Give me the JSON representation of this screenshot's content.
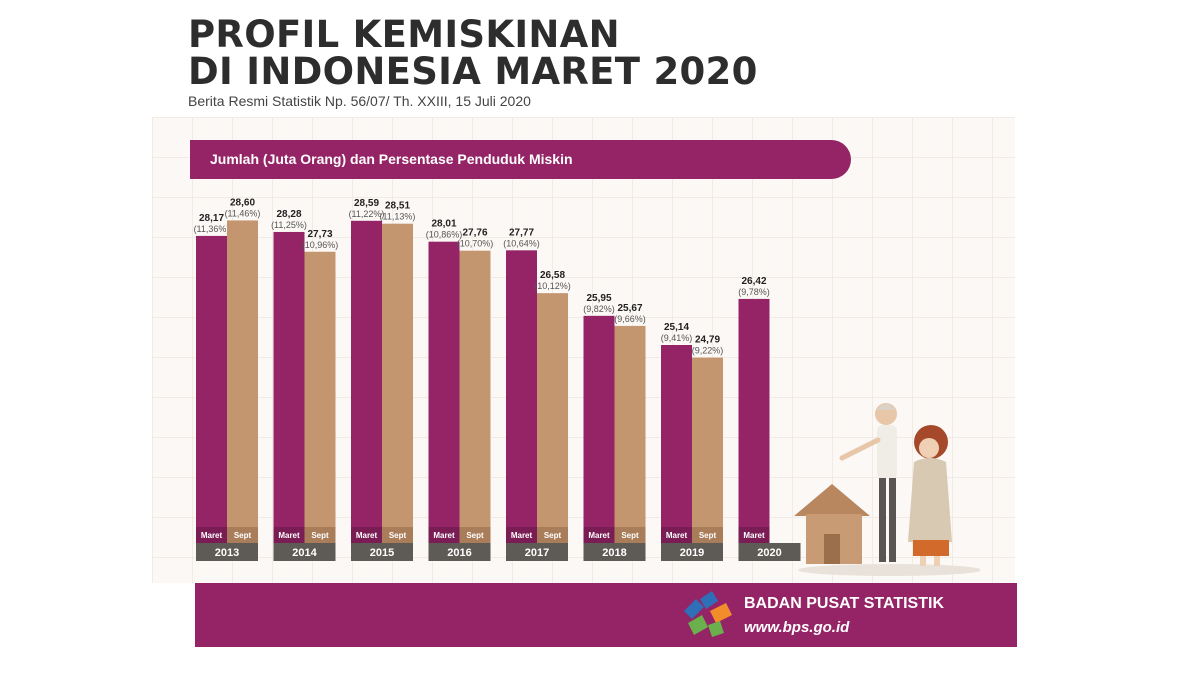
{
  "header": {
    "title_line1": "PROFIL KEMISKINAN",
    "title_line2": "DI INDONESIA MARET 2020",
    "subtitle": "Berita Resmi Statistik Np. 56/07/ Th. XXIII, 15 Juli 2020"
  },
  "chart_data": {
    "type": "bar",
    "title": "Jumlah (Juta Orang) dan Persentase Penduduk Miskin",
    "xlabel": "",
    "ylabel": "",
    "categories": [
      "2013",
      "2014",
      "2015",
      "2016",
      "2017",
      "2018",
      "2019",
      "2020"
    ],
    "series": [
      {
        "name": "Maret",
        "color": "#952467",
        "values": [
          28.17,
          28.28,
          28.59,
          28.01,
          27.77,
          25.95,
          25.14,
          26.42
        ],
        "value_labels": [
          "28,17",
          "28,28",
          "28,59",
          "28,01",
          "27,77",
          "25,95",
          "25,14",
          "26,42"
        ],
        "percent_labels": [
          "(11,36%)",
          "(11,25%)",
          "(11,22%)",
          "(10,86%)",
          "(10,64%)",
          "(9,82%)",
          "(9,41%)",
          "(9,78%)"
        ]
      },
      {
        "name": "Sept",
        "color": "#c4966f",
        "values": [
          28.6,
          27.73,
          28.51,
          27.76,
          26.58,
          25.67,
          24.79,
          null
        ],
        "value_labels": [
          "28,60",
          "27,73",
          "28,51",
          "27,76",
          "26,58",
          "25,67",
          "24,79",
          null
        ],
        "percent_labels": [
          "(11,46%)",
          "(10,96%)",
          "(11,13%)",
          "(10,70%)",
          "(10,12%)",
          "(9,66%)",
          "(9,22%)",
          null
        ]
      }
    ],
    "legend": "bar-base labels",
    "grid": false
  },
  "footer": {
    "agency": "BADAN PUSAT STATISTIK",
    "website": "www.bps.go.id"
  },
  "colors": {
    "accent": "#952467",
    "secondary": "#c4966f",
    "year_band": "#5e5a55"
  },
  "icons": {
    "logo": "bps-logo-icon",
    "illustration": "elderly-couple-house-icon"
  }
}
